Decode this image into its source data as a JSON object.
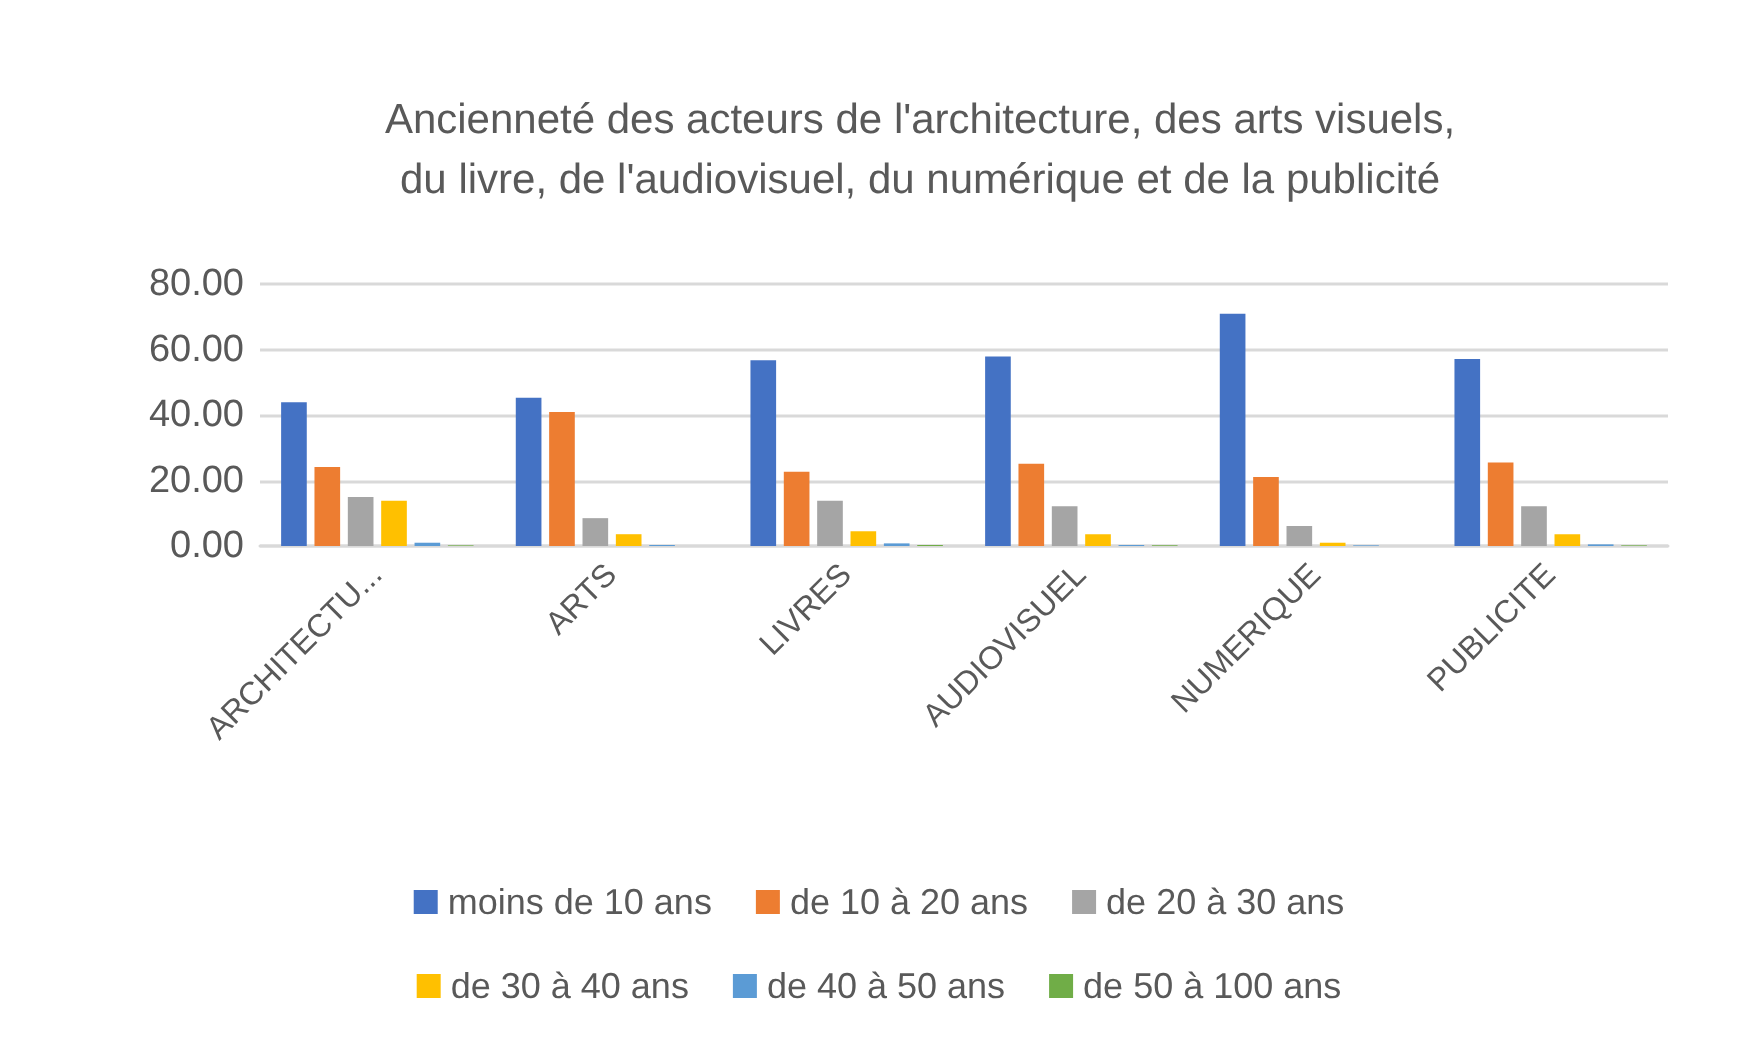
{
  "chart_data": {
    "type": "bar",
    "title": "Ancienneté des acteurs de l'architecture, des arts visuels,\ndu livre, de l'audiovisuel, du numérique et de la publicité",
    "categories": [
      "ARCHITECTU...",
      "ARTS",
      "LIVRES",
      "AUDIOVISUEL",
      "NUMERIQUE",
      "PUBLICITE"
    ],
    "series": [
      {
        "name": "moins de 10 ans",
        "color": "#4472c4",
        "values": [
          43.9,
          45.3,
          56.7,
          57.9,
          70.9,
          57.1
        ]
      },
      {
        "name": "de 10 à 20 ans",
        "color": "#ed7d31",
        "values": [
          24.1,
          40.9,
          22.7,
          25.1,
          21.1,
          25.5
        ]
      },
      {
        "name": "de 20 à 30 ans",
        "color": "#a5a5a5",
        "values": [
          15.0,
          8.5,
          13.8,
          12.1,
          6.1,
          12.1
        ]
      },
      {
        "name": "de 30 à 40 ans",
        "color": "#ffc000",
        "values": [
          13.8,
          3.6,
          4.5,
          3.6,
          1.0,
          3.6
        ]
      },
      {
        "name": "de 40 à 50 ans",
        "color": "#5b9bd5",
        "values": [
          1.0,
          0.3,
          0.8,
          0.3,
          0.2,
          0.5
        ]
      },
      {
        "name": "de 50 à 100 ans",
        "color": "#70ad47",
        "values": [
          0.2,
          null,
          0.3,
          0.2,
          0.0,
          0.2
        ]
      }
    ],
    "ylim": [
      0,
      80
    ],
    "yticks": [
      {
        "value": 0,
        "label": "0.00"
      },
      {
        "value": 20,
        "label": "20.00"
      },
      {
        "value": 40,
        "label": "40.00"
      },
      {
        "value": 60,
        "label": "60.00"
      },
      {
        "value": 80,
        "label": "80.00"
      }
    ],
    "grid": "y",
    "legend": "bottom"
  }
}
